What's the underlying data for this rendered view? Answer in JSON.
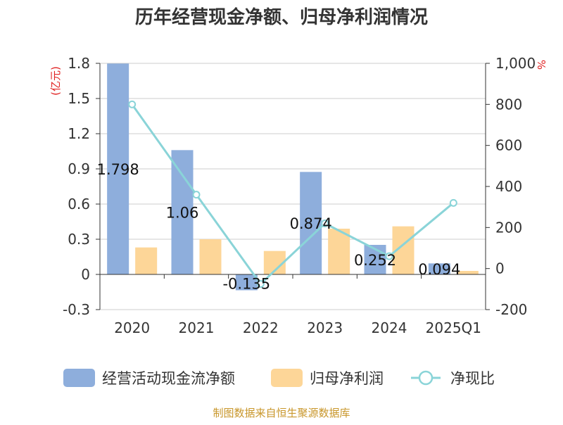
{
  "chart_data": {
    "type": "bar",
    "title": "历年经营现金净额、归母净利润情况",
    "categories": [
      "2020",
      "2021",
      "2022",
      "2023",
      "2024",
      "2025Q1"
    ],
    "series": [
      {
        "name": "经营活动现金流净额",
        "type": "bar",
        "axis": "left",
        "color": "#8eaedc",
        "values": [
          1.798,
          1.06,
          -0.135,
          0.874,
          0.252,
          0.094
        ]
      },
      {
        "name": "归母净利润",
        "type": "bar",
        "axis": "left",
        "color": "#fdd698",
        "values": [
          0.23,
          0.3,
          0.2,
          0.39,
          0.41,
          0.03
        ]
      },
      {
        "name": "净现比",
        "type": "line",
        "axis": "right",
        "color": "#8ad4d8",
        "values": [
          800,
          360,
          -75,
          220,
          60,
          320
        ]
      }
    ],
    "data_labels": [
      "1.798",
      "1.06",
      "-0.135",
      "0.874",
      "0.252",
      "0.094"
    ],
    "y_left": {
      "unit": "(亿元)",
      "ylim": [
        -0.3,
        1.8
      ],
      "ticks": [
        "1.8",
        "1.5",
        "1.2",
        "0.9",
        "0.6",
        "0.3",
        "0",
        "-0.3"
      ]
    },
    "y_right": {
      "unit": "%",
      "ylim": [
        -200,
        1000
      ],
      "ticks": [
        "1,000",
        "800",
        "600",
        "400",
        "200",
        "0",
        "-200"
      ]
    },
    "grid": true,
    "legend_position": "bottom"
  },
  "source_text": "制图数据来自恒生聚源数据库"
}
